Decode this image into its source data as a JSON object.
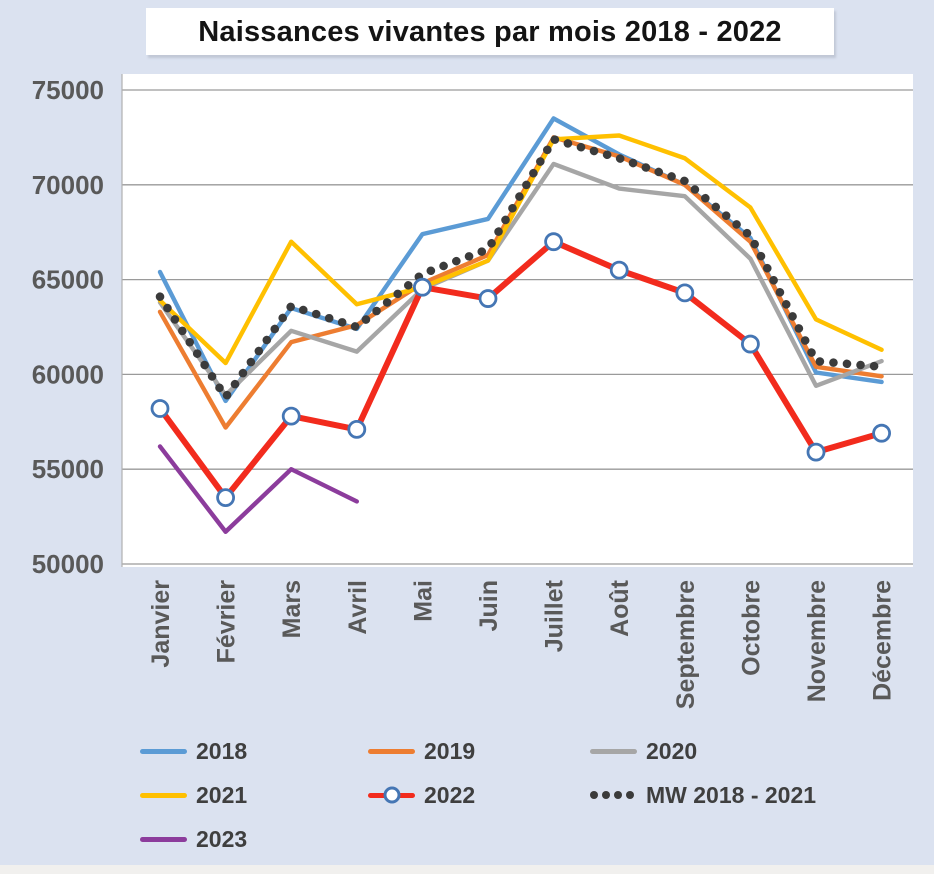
{
  "title": {
    "text": "Naissances vivantes par mois 2018 - 2022"
  },
  "chart_data": {
    "type": "line",
    "title": "Naissances vivantes par mois 2018 - 2022",
    "categories": [
      "Janvier",
      "Février",
      "Mars",
      "Avril",
      "Mai",
      "Juin",
      "Juillet",
      "Août",
      "Septembre",
      "Octobre",
      "Novembre",
      "Décembre"
    ],
    "ylim": [
      50000,
      75000
    ],
    "y_ticks": [
      75000,
      70000,
      65000,
      60000,
      55000,
      50000
    ],
    "grid": true,
    "legend_position": "bottom",
    "series": [
      {
        "name": "2018",
        "color": "#5B9BD5",
        "style": "solid",
        "values": [
          65400,
          58600,
          63500,
          62400,
          67400,
          68200,
          73500,
          71600,
          70000,
          67200,
          60100,
          59600
        ]
      },
      {
        "name": "2019",
        "color": "#ED7D31",
        "style": "solid",
        "values": [
          63300,
          57200,
          61700,
          62600,
          64800,
          66300,
          72500,
          71500,
          70000,
          67000,
          60400,
          59900
        ]
      },
      {
        "name": "2020",
        "color": "#A6A6A6",
        "style": "solid",
        "values": [
          63800,
          58900,
          62300,
          61200,
          64500,
          66000,
          71100,
          69800,
          69400,
          66100,
          59400,
          60700
        ]
      },
      {
        "name": "2021",
        "color": "#FFC000",
        "style": "solid",
        "values": [
          63900,
          60600,
          67000,
          63700,
          64600,
          66000,
          72400,
          72600,
          71400,
          68800,
          62900,
          61300
        ]
      },
      {
        "name": "MW 2018 - 2021",
        "color": "#3B3B3B",
        "style": "dotted",
        "values": [
          64100,
          58800,
          63600,
          62500,
          65300,
          66600,
          72400,
          71400,
          70200,
          67300,
          60700,
          60400
        ]
      },
      {
        "name": "2022",
        "color": "#F22B1D",
        "style": "solid-marker",
        "marker": {
          "fill": "#FFFFFF",
          "stroke": "#4576B4"
        },
        "values": [
          58200,
          53500,
          57800,
          57100,
          64600,
          64000,
          67000,
          65500,
          64300,
          61600,
          55900,
          56900
        ]
      },
      {
        "name": "2023",
        "color": "#8C3C9C",
        "style": "solid",
        "values": [
          56200,
          51700,
          55000,
          53300,
          null,
          null,
          null,
          null,
          null,
          null,
          null,
          null
        ]
      }
    ],
    "legend": [
      {
        "label": "2018",
        "color": "#5B9BD5",
        "style": "line"
      },
      {
        "label": "2019",
        "color": "#ED7D31",
        "style": "line"
      },
      {
        "label": "2020",
        "color": "#A6A6A6",
        "style": "line"
      },
      {
        "label": "2021",
        "color": "#FFC000",
        "style": "line"
      },
      {
        "label": "2022",
        "color": "#F22B1D",
        "style": "line-marker"
      },
      {
        "label": "MW 2018 - 2021",
        "color": "#3B3B3B",
        "style": "dots"
      },
      {
        "label": "2023",
        "color": "#8C3C9C",
        "style": "line"
      }
    ]
  }
}
